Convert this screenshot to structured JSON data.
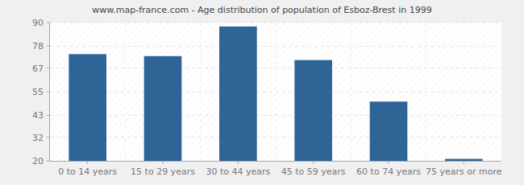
{
  "chart_data": {
    "type": "bar",
    "title": "www.map-france.com - Age distribution of population of Esboz-Brest in 1999",
    "categories": [
      "0 to 14 years",
      "15 to 29 years",
      "30 to 44 years",
      "45 to 59 years",
      "60 to 74 years",
      "75 years or more"
    ],
    "values": [
      74,
      73,
      88,
      71,
      50,
      21
    ],
    "color": "#2f6497",
    "ylim": [
      20,
      90
    ],
    "yticks": [
      20,
      32,
      43,
      55,
      67,
      78,
      90
    ],
    "grid": true
  }
}
